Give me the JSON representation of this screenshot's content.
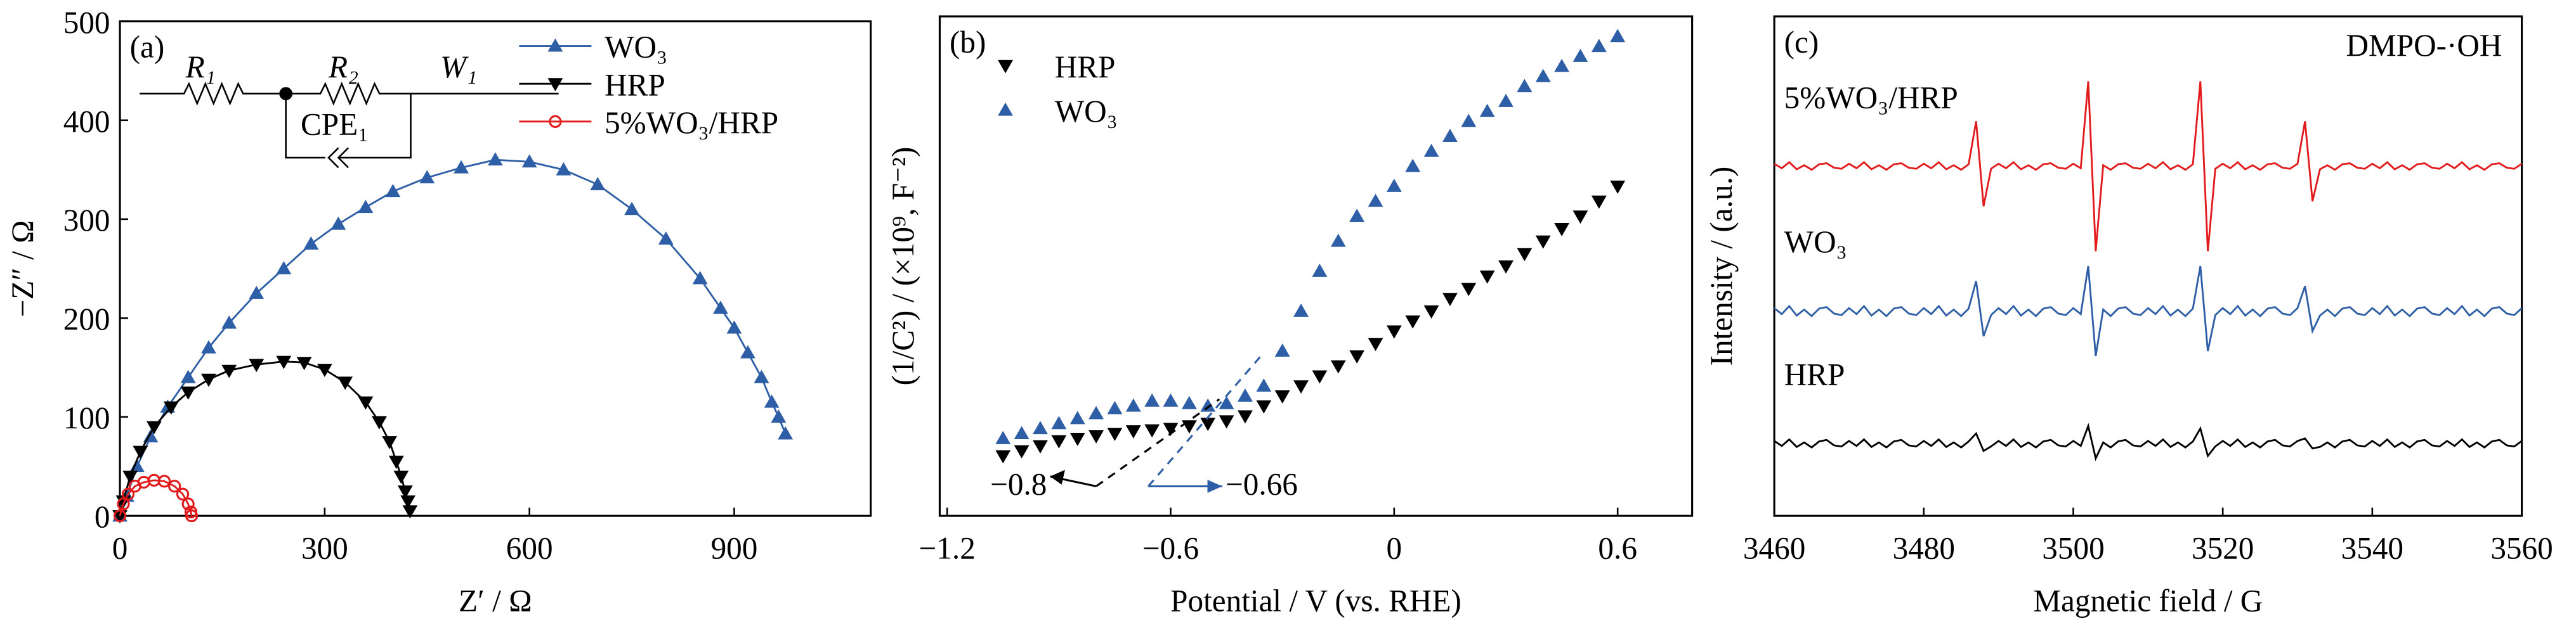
{
  "chart_data": [
    {
      "type": "line",
      "panel_label": "(a)",
      "xlabel": "Z′ / Ω",
      "ylabel": "−Z″ / Ω",
      "xlim": [
        0,
        1100
      ],
      "ylim": [
        0,
        500
      ],
      "xticks": [
        0,
        300,
        600,
        900
      ],
      "yticks": [
        0,
        100,
        200,
        300,
        400,
        500
      ],
      "legend": "upper center",
      "annotations": [
        "R₁",
        "R₂",
        "W₁",
        "CPE₁"
      ],
      "series": [
        {
          "name": "WO₃",
          "color": "#2e5fa6",
          "marker": "triangle-up",
          "x": [
            0,
            10,
            25,
            45,
            70,
            100,
            130,
            160,
            200,
            240,
            280,
            320,
            360,
            400,
            450,
            500,
            550,
            600,
            650,
            700,
            750,
            800,
            850,
            880,
            900,
            920,
            940,
            955,
            965,
            975
          ],
          "values": [
            0,
            20,
            50,
            80,
            110,
            140,
            170,
            195,
            225,
            250,
            275,
            295,
            312,
            328,
            342,
            352,
            360,
            358,
            350,
            335,
            310,
            280,
            240,
            210,
            190,
            165,
            140,
            115,
            100,
            83
          ]
        },
        {
          "name": "HRP",
          "color": "#000000",
          "marker": "triangle-down",
          "x": [
            0,
            5,
            15,
            30,
            50,
            75,
            100,
            130,
            160,
            200,
            240,
            270,
            300,
            330,
            360,
            380,
            395,
            405,
            412,
            418,
            422,
            425
          ],
          "values": [
            0,
            15,
            40,
            65,
            90,
            110,
            125,
            138,
            147,
            153,
            156,
            155,
            148,
            135,
            115,
            95,
            75,
            55,
            40,
            25,
            15,
            5
          ]
        },
        {
          "name": "5%WO₃/HRP",
          "color": "#e31a1c",
          "marker": "circle",
          "x": [
            0,
            5,
            12,
            22,
            35,
            50,
            65,
            80,
            92,
            100,
            104,
            105
          ],
          "values": [
            0,
            12,
            22,
            30,
            34,
            36,
            35,
            30,
            22,
            12,
            4,
            0
          ]
        }
      ]
    },
    {
      "type": "scatter",
      "panel_label": "(b)",
      "xlabel": "Potential / V (vs. RHE)",
      "ylabel": "(1/C²) / (×10⁹, F⁻²)",
      "xlim": [
        -1.22,
        0.8
      ],
      "ylim": [
        0,
        10
      ],
      "xticks": [
        {
          "value": -1.2,
          "label": "−1.2"
        },
        {
          "value": -0.6,
          "label": "−0.6"
        },
        0,
        0.6
      ],
      "legend": "upper left",
      "x": [
        -1.05,
        -1.0,
        -0.95,
        -0.9,
        -0.85,
        -0.8,
        -0.75,
        -0.7,
        -0.65,
        -0.6,
        -0.55,
        -0.5,
        -0.45,
        -0.4,
        -0.35,
        -0.3,
        -0.25,
        -0.2,
        -0.15,
        -0.1,
        -0.05,
        0,
        0.05,
        0.1,
        0.15,
        0.2,
        0.25,
        0.3,
        0.35,
        0.4,
        0.45,
        0.5,
        0.55,
        0.6
      ],
      "annotations": [
        {
          "text": "−0.8",
          "x": -0.8,
          "color": "#000000"
        },
        {
          "text": "−0.66",
          "x": -0.66,
          "color": "#2e5fa6"
        }
      ],
      "series": [
        {
          "name": "HRP",
          "color": "#000000",
          "marker": "triangle-down",
          "values": [
            1.2,
            1.3,
            1.4,
            1.5,
            1.55,
            1.6,
            1.65,
            1.7,
            1.72,
            1.75,
            1.8,
            1.85,
            1.9,
            2.0,
            2.2,
            2.4,
            2.6,
            2.8,
            3.0,
            3.2,
            3.45,
            3.7,
            3.9,
            4.1,
            4.35,
            4.55,
            4.8,
            5.0,
            5.25,
            5.5,
            5.75,
            6.0,
            6.3,
            6.6
          ]
        },
        {
          "name": "WO₃",
          "color": "#2e5fa6",
          "marker": "triangle-up",
          "values": [
            1.55,
            1.65,
            1.75,
            1.85,
            1.95,
            2.05,
            2.15,
            2.2,
            2.3,
            2.3,
            2.25,
            2.2,
            2.25,
            2.4,
            2.6,
            3.3,
            4.1,
            4.9,
            5.5,
            6.0,
            6.3,
            6.6,
            7.0,
            7.3,
            7.6,
            7.9,
            8.1,
            8.3,
            8.6,
            8.8,
            9.0,
            9.2,
            9.4,
            9.6
          ]
        }
      ]
    },
    {
      "type": "line",
      "panel_label": "(c)",
      "xlabel": "Magnetic field / G",
      "ylabel": "Intensity / (a.u.)",
      "annotation": "DMPO-·OH",
      "xlim": [
        3460,
        3560
      ],
      "ylim": [
        0,
        10
      ],
      "xticks": [
        3460,
        3480,
        3500,
        3520,
        3540,
        3560
      ],
      "legend": "inline",
      "x": [
        3460,
        3461,
        3462,
        3463,
        3464,
        3465,
        3466,
        3467,
        3468,
        3469,
        3470,
        3471,
        3472,
        3473,
        3474,
        3475,
        3476,
        3477,
        3478,
        3479,
        3480,
        3481,
        3482,
        3483,
        3484,
        3485,
        3486,
        3487,
        3488,
        3489,
        3490,
        3491,
        3492,
        3493,
        3494,
        3495,
        3496,
        3497,
        3498,
        3499,
        3500,
        3501,
        3502,
        3503,
        3504,
        3505,
        3506,
        3507,
        3508,
        3509,
        3510,
        3511,
        3512,
        3513,
        3514,
        3515,
        3516,
        3517,
        3518,
        3519,
        3520,
        3521,
        3522,
        3523,
        3524,
        3525,
        3526,
        3527,
        3528,
        3529,
        3530,
        3531,
        3532,
        3533,
        3534,
        3535,
        3536,
        3537,
        3538,
        3539,
        3540,
        3541,
        3542,
        3543,
        3544,
        3545,
        3546,
        3547,
        3548,
        3549,
        3550,
        3551,
        3552,
        3553,
        3554,
        3555,
        3556,
        3557,
        3558,
        3559,
        3560
      ],
      "series": [
        {
          "name": "5%WO₃/HRP",
          "color": "#e31a1c",
          "values": [
            7.05,
            6.96,
            7.08,
            6.94,
            7.02,
            6.93,
            7.04,
            7.06,
            6.97,
            6.95,
            7.05,
            6.96,
            7.08,
            6.94,
            7.02,
            6.93,
            7.04,
            7.06,
            6.97,
            6.95,
            7.05,
            6.96,
            7.08,
            6.94,
            7.02,
            6.93,
            7.04,
            7.9,
            6.2,
            6.95,
            7.05,
            6.96,
            7.08,
            6.94,
            7.02,
            6.93,
            7.04,
            7.06,
            6.97,
            6.95,
            7.05,
            6.96,
            8.7,
            5.3,
            7.02,
            6.93,
            7.04,
            7.06,
            6.97,
            6.95,
            7.05,
            6.96,
            7.08,
            6.94,
            7.02,
            6.93,
            7.04,
            8.7,
            5.3,
            6.95,
            7.05,
            6.96,
            7.08,
            6.94,
            7.02,
            6.93,
            7.04,
            7.06,
            6.97,
            6.95,
            7.05,
            7.9,
            6.3,
            6.94,
            7.02,
            6.93,
            7.04,
            7.06,
            6.97,
            6.95,
            7.05,
            6.96,
            7.08,
            6.94,
            7.02,
            6.93,
            7.04,
            7.06,
            6.97,
            6.95,
            7.05,
            6.96,
            7.08,
            6.94,
            7.02,
            6.93,
            7.04,
            7.06,
            6.97,
            6.95,
            7.05
          ]
        },
        {
          "name": "WO₃",
          "color": "#2e5fa6",
          "values": [
            4.16,
            4.04,
            4.2,
            4.01,
            4.13,
            4.0,
            4.15,
            4.18,
            4.05,
            4.02,
            4.16,
            4.04,
            4.2,
            4.01,
            4.13,
            4.0,
            4.15,
            4.18,
            4.05,
            4.02,
            4.16,
            4.04,
            4.2,
            4.01,
            4.13,
            4.0,
            4.15,
            4.7,
            3.6,
            4.02,
            4.16,
            4.04,
            4.2,
            4.01,
            4.13,
            4.0,
            4.15,
            4.18,
            4.05,
            4.02,
            4.16,
            4.04,
            5.0,
            3.2,
            4.13,
            4.0,
            4.15,
            4.18,
            4.05,
            4.02,
            4.16,
            4.04,
            4.2,
            4.01,
            4.13,
            4.0,
            4.15,
            5.0,
            3.3,
            4.02,
            4.16,
            4.04,
            4.2,
            4.01,
            4.13,
            4.0,
            4.15,
            4.18,
            4.05,
            4.02,
            4.16,
            4.6,
            3.7,
            4.01,
            4.13,
            4.0,
            4.15,
            4.18,
            4.05,
            4.02,
            4.16,
            4.04,
            4.2,
            4.01,
            4.13,
            4.0,
            4.15,
            4.18,
            4.05,
            4.02,
            4.16,
            4.04,
            4.2,
            4.01,
            4.13,
            4.0,
            4.15,
            4.18,
            4.05,
            4.02,
            4.16
          ]
        },
        {
          "name": "HRP",
          "color": "#000000",
          "values": [
            1.5,
            1.4,
            1.53,
            1.38,
            1.47,
            1.37,
            1.49,
            1.52,
            1.41,
            1.39,
            1.5,
            1.4,
            1.53,
            1.38,
            1.47,
            1.37,
            1.49,
            1.52,
            1.41,
            1.39,
            1.5,
            1.4,
            1.53,
            1.38,
            1.47,
            1.37,
            1.49,
            1.65,
            1.3,
            1.39,
            1.5,
            1.4,
            1.53,
            1.38,
            1.47,
            1.37,
            1.49,
            1.52,
            1.41,
            1.39,
            1.5,
            1.4,
            1.8,
            1.15,
            1.47,
            1.37,
            1.49,
            1.52,
            1.41,
            1.39,
            1.5,
            1.4,
            1.53,
            1.38,
            1.47,
            1.37,
            1.49,
            1.75,
            1.2,
            1.39,
            1.5,
            1.4,
            1.53,
            1.38,
            1.47,
            1.37,
            1.49,
            1.52,
            1.41,
            1.39,
            1.5,
            1.55,
            1.35,
            1.38,
            1.47,
            1.37,
            1.49,
            1.52,
            1.41,
            1.39,
            1.5,
            1.4,
            1.53,
            1.38,
            1.47,
            1.37,
            1.49,
            1.52,
            1.41,
            1.39,
            1.5,
            1.4,
            1.53,
            1.38,
            1.47,
            1.37,
            1.49,
            1.52,
            1.41,
            1.39,
            1.5
          ]
        }
      ]
    }
  ]
}
